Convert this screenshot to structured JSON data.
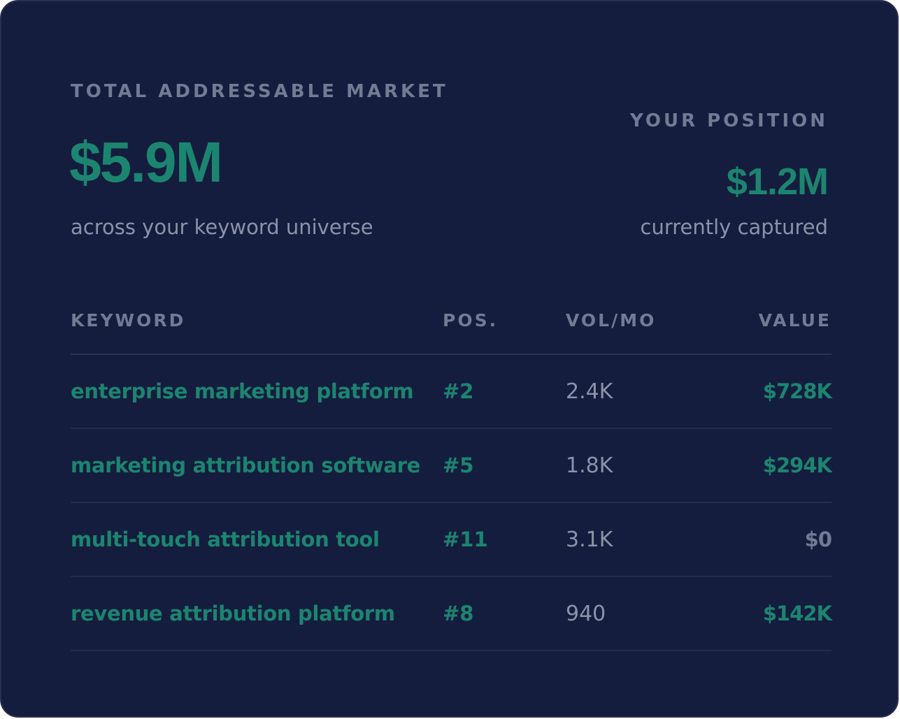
{
  "summary": {
    "tam_label": "TOTAL ADDRESSABLE MARKET",
    "tam_value": "$5.9M",
    "tam_subtitle": "across your keyword universe",
    "position_label": "YOUR POSITION",
    "position_value": "$1.2M",
    "position_subtitle": "currently captured"
  },
  "table": {
    "headers": {
      "keyword": "KEYWORD",
      "position": "POS.",
      "volume": "VOL/MO",
      "value": "VALUE"
    },
    "rows": [
      {
        "keyword": "enterprise marketing platform",
        "position": "#2",
        "volume": "2.4K",
        "value": "$728K"
      },
      {
        "keyword": "marketing attribution software",
        "position": "#5",
        "volume": "1.8K",
        "value": "$294K"
      },
      {
        "keyword": "multi-touch attribution tool",
        "position": "#11",
        "volume": "3.1K",
        "value": "$0"
      },
      {
        "keyword": "revenue attribution platform",
        "position": "#8",
        "volume": "940",
        "value": "$142K"
      }
    ]
  },
  "colors": {
    "background": "#151d3e",
    "accent": "#1c8570",
    "muted": "#737a93",
    "text": "#8c93a8"
  }
}
